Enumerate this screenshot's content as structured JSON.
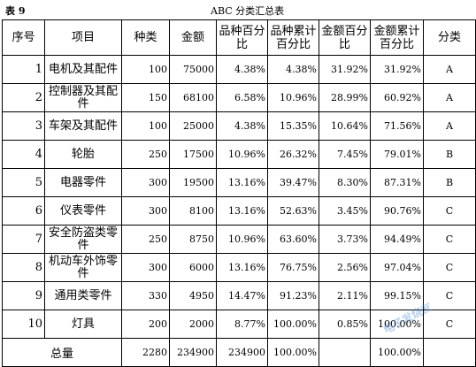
{
  "caption": {
    "label": "表 9",
    "title": "ABC 分类汇总表"
  },
  "header": [
    "序号",
    "项目",
    "种类",
    "金额",
    "品种百分比",
    "品种累计百分比",
    "金额百分比",
    "金额累计百分比",
    "分类"
  ],
  "rows": [
    [
      "1",
      "电机及其配件",
      "100",
      "75000",
      "4.38%",
      "4.38%",
      "31.92%",
      "31.92%",
      "A"
    ],
    [
      "2",
      "控制器及其配件",
      "150",
      "68100",
      "6.58%",
      "10.96%",
      "28.99%",
      "60.92%",
      "A"
    ],
    [
      "3",
      "车架及其配件",
      "100",
      "25000",
      "4.38%",
      "15.35%",
      "10.64%",
      "71.56%",
      "A"
    ],
    [
      "4",
      "轮胎",
      "250",
      "17500",
      "10.96%",
      "26.32%",
      "7.45%",
      "79.01%",
      "B"
    ],
    [
      "5",
      "电器零件",
      "300",
      "19500",
      "13.16%",
      "39.47%",
      "8.30%",
      "87.31%",
      "B"
    ],
    [
      "6",
      "仪表零件",
      "300",
      "8100",
      "13.16%",
      "52.63%",
      "3.45%",
      "90.76%",
      "C"
    ],
    [
      "7",
      "安全防盗类零件",
      "250",
      "8750",
      "10.96%",
      "63.60%",
      "3.73%",
      "94.49%",
      "C"
    ],
    [
      "8",
      "机动车外饰零件",
      "300",
      "6000",
      "13.16%",
      "76.75%",
      "2.56%",
      "97.04%",
      "C"
    ],
    [
      "9",
      "通用类零件",
      "330",
      "4950",
      "14.47%",
      "91.23%",
      "2.11%",
      "99.15%",
      "C"
    ],
    [
      "10",
      "灯具",
      "200",
      "2000",
      "8.77%",
      "100.00%",
      "0.85%",
      "100.00%",
      "C"
    ]
  ],
  "total": {
    "label": "总量",
    "kinds": "2280",
    "amount": "234900",
    "amount2": "234900",
    "percent": "100.00%",
    "amount_percent": "100.00%"
  },
  "watermark": "电子发烧友"
}
